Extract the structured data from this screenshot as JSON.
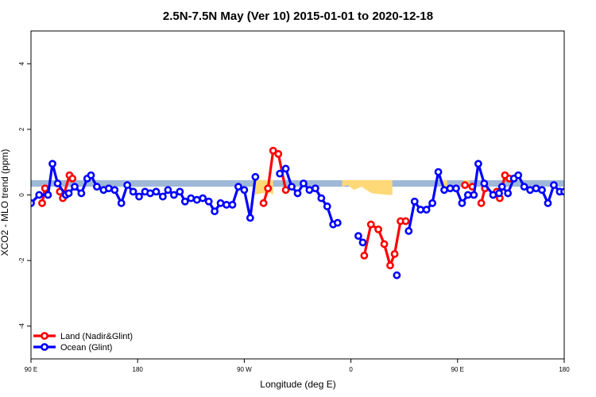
{
  "chart_data": {
    "type": "line",
    "title": "2.5N-7.5N May (Ver 10)   2015-01-01 to 2020-12-18",
    "xlabel": "Longitude (deg E)",
    "ylabel": "XCO2 - MLO trend (ppm)",
    "xlim": [
      90,
      450
    ],
    "ylim": [
      -5,
      5
    ],
    "x_ticks": [
      {
        "value": 90,
        "label": "90 E"
      },
      {
        "value": 162,
        "label": "180"
      },
      {
        "value": 234,
        "label": "90 W"
      },
      {
        "value": 306,
        "label": "0"
      },
      {
        "value": 378,
        "label": "90 E"
      },
      {
        "value": 450,
        "label": "180"
      }
    ],
    "y_ticks": [
      -4,
      -2,
      0,
      2,
      4
    ],
    "band": {
      "ymin": 0.25,
      "ymax": 0.45,
      "color": "#9fb8d8"
    },
    "land_fill": {
      "color": "#ffd878",
      "regions": [
        {
          "x": [
            240.5,
            246,
            252,
            253.5
          ],
          "top": [
            0.45,
            0.45,
            0.45,
            0.45
          ],
          "bottom": [
            0.0,
            0.05,
            0.05,
            0.0
          ]
        },
        {
          "x": [
            300,
            304,
            308,
            313,
            320,
            331,
            334
          ],
          "top": [
            0.45,
            0.45,
            0.45,
            0.45,
            0.45,
            0.45,
            0.45
          ],
          "bottom": [
            0.25,
            0.3,
            0.15,
            0.25,
            0.05,
            0.0,
            0.0
          ]
        },
        {
          "x": [
            367,
            371
          ],
          "top": [
            0.45,
            0.45
          ],
          "bottom": [
            0.25,
            0.25
          ]
        },
        {
          "x": [
            382,
            386
          ],
          "top": [
            0.45,
            0.45
          ],
          "bottom": [
            0.25,
            0.25
          ]
        }
      ]
    },
    "series": [
      {
        "name": "Land (Nadir&Glint)",
        "color": "#ff0000",
        "points": [
          [
            97.5,
            -0.25
          ],
          [
            99.5,
            0.2
          ],
          [
            109.5,
            0.1
          ],
          [
            111.5,
            -0.1
          ],
          [
            116,
            0.6
          ],
          [
            118,
            0.5
          ],
          [
            247,
            -0.25
          ],
          [
            250,
            0.2
          ],
          [
            253.5,
            1.35
          ],
          [
            257,
            1.25
          ],
          [
            262,
            0.15
          ],
          [
            315,
            -1.85
          ],
          [
            319.5,
            -0.9
          ],
          [
            324.5,
            -1.05
          ],
          [
            328.5,
            -1.5
          ],
          [
            332.5,
            -2.15
          ],
          [
            335.5,
            -1.8
          ],
          [
            339.5,
            -0.8
          ],
          [
            343,
            -0.8
          ],
          [
            383,
            0.3
          ],
          [
            388,
            0.25
          ],
          [
            394,
            -0.25
          ],
          [
            396.5,
            0.2
          ],
          [
            404.5,
            0.1
          ],
          [
            406.5,
            -0.1
          ],
          [
            410,
            0.6
          ],
          [
            413,
            0.5
          ]
        ],
        "segments": [
          [
            0,
            1
          ],
          [
            2,
            3,
            4,
            5
          ],
          [
            6,
            7,
            8,
            9,
            10
          ],
          [
            11,
            12,
            13,
            14,
            15,
            16,
            17,
            18
          ],
          [
            19,
            20
          ],
          [
            21,
            22
          ],
          [
            23,
            24,
            25,
            26
          ]
        ]
      },
      {
        "name": "Ocean (Glint)",
        "color": "#0000ff",
        "points": [
          [
            90,
            -0.25
          ],
          [
            95.5,
            0
          ],
          [
            101.5,
            0
          ],
          [
            104.5,
            0.95
          ],
          [
            108,
            0.35
          ],
          [
            113.5,
            0
          ],
          [
            115.5,
            0.05
          ],
          [
            119.5,
            0.25
          ],
          [
            124,
            0.05
          ],
          [
            128,
            0.5
          ],
          [
            130.5,
            0.6
          ],
          [
            134.5,
            0.25
          ],
          [
            139,
            0.15
          ],
          [
            142.5,
            0.2
          ],
          [
            146.5,
            0.15
          ],
          [
            151,
            -0.25
          ],
          [
            155,
            0.3
          ],
          [
            159,
            0.1
          ],
          [
            163,
            -0.05
          ],
          [
            167,
            0.1
          ],
          [
            170.5,
            0.05
          ],
          [
            174.5,
            0.1
          ],
          [
            179,
            -0.05
          ],
          [
            182.5,
            0.15
          ],
          [
            186.5,
            0
          ],
          [
            190.5,
            0.1
          ],
          [
            194,
            -0.2
          ],
          [
            198,
            -0.1
          ],
          [
            202,
            -0.15
          ],
          [
            206,
            -0.1
          ],
          [
            210,
            -0.2
          ],
          [
            214,
            -0.5
          ],
          [
            218,
            -0.25
          ],
          [
            222,
            -0.3
          ],
          [
            226,
            -0.3
          ],
          [
            230,
            0.25
          ],
          [
            234,
            0.15
          ],
          [
            238,
            -0.7
          ],
          [
            241.5,
            0.55
          ],
          [
            258,
            0.65
          ],
          [
            262,
            0.8
          ],
          [
            266,
            0.25
          ],
          [
            270,
            0.05
          ],
          [
            274,
            0.35
          ],
          [
            278,
            0.15
          ],
          [
            282,
            0.2
          ],
          [
            286,
            -0.1
          ],
          [
            290,
            -0.35
          ],
          [
            294,
            -0.9
          ],
          [
            297,
            -0.85
          ],
          [
            311,
            -1.25
          ],
          [
            314,
            -1.45
          ],
          [
            337,
            -2.45
          ],
          [
            345,
            -1.1
          ],
          [
            349,
            -0.2
          ],
          [
            353,
            -0.45
          ],
          [
            357,
            -0.45
          ],
          [
            361,
            -0.25
          ],
          [
            365,
            0.7
          ],
          [
            369,
            0.15
          ],
          [
            373,
            0.2
          ],
          [
            377,
            0.2
          ],
          [
            381,
            -0.25
          ],
          [
            385,
            0
          ],
          [
            389,
            0
          ],
          [
            392,
            0.95
          ],
          [
            396,
            0.35
          ],
          [
            402,
            0
          ],
          [
            406,
            0.05
          ],
          [
            408,
            0.25
          ],
          [
            412,
            0.05
          ],
          [
            416,
            0.5
          ],
          [
            419,
            0.6
          ],
          [
            423,
            0.25
          ],
          [
            427,
            0.15
          ],
          [
            431,
            0.2
          ],
          [
            435,
            0.15
          ],
          [
            439,
            -0.25
          ],
          [
            443,
            0.3
          ],
          [
            447,
            0.1
          ],
          [
            450,
            0.1
          ]
        ],
        "segments": [
          [
            0,
            1,
            2,
            3,
            4,
            5,
            6,
            7,
            8,
            9,
            10,
            11,
            12,
            13,
            14,
            15,
            16,
            17,
            18,
            19,
            20,
            21,
            22,
            23,
            24,
            25,
            26,
            27,
            28,
            29,
            30,
            31,
            32,
            33,
            34,
            35,
            36,
            37,
            38
          ],
          [
            39,
            40,
            41,
            42,
            43,
            44,
            45,
            46,
            47,
            48,
            49
          ],
          [
            50,
            51
          ],
          [
            52
          ],
          [
            53,
            54,
            55,
            56,
            57,
            58,
            59,
            60,
            61,
            62,
            63,
            64,
            65,
            66,
            67,
            68,
            69,
            70,
            71,
            72,
            73,
            74,
            75,
            76,
            77,
            78,
            79,
            80
          ]
        ]
      }
    ],
    "legend": {
      "position": "bottom-left"
    }
  }
}
